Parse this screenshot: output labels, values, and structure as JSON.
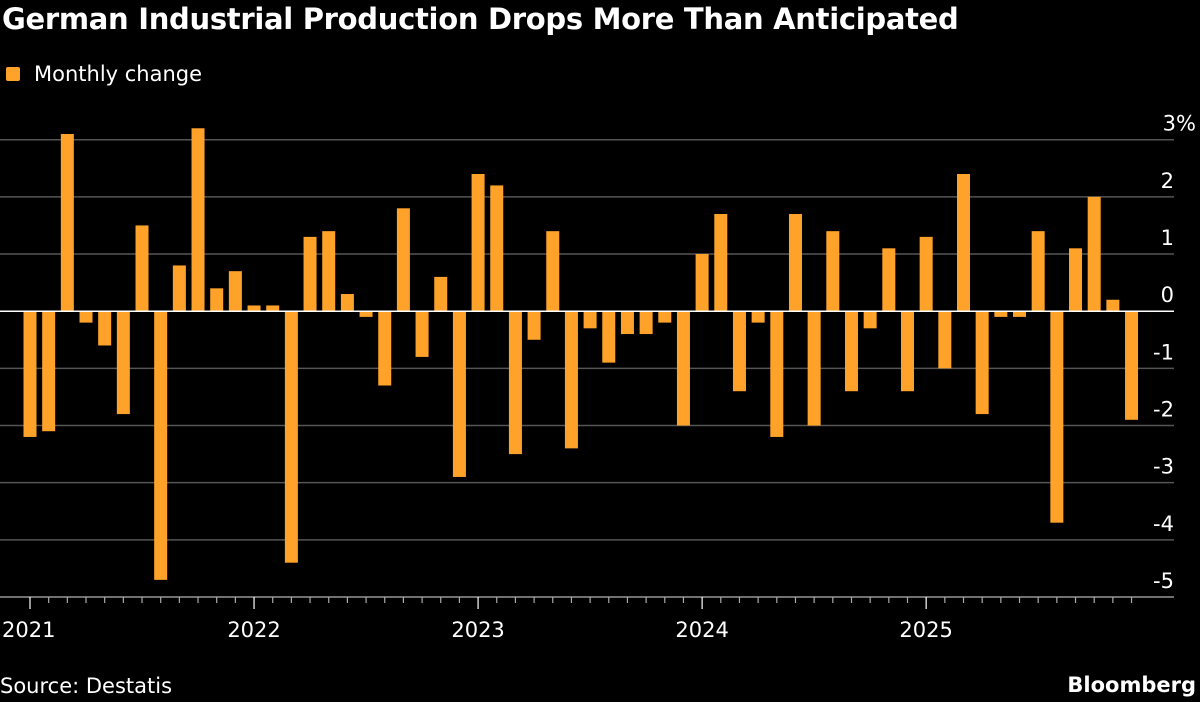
{
  "chart_data": {
    "type": "bar",
    "title": "German Industrial Production Drops More Than Anticipated",
    "legend": {
      "position": "top-left",
      "entries": [
        {
          "name": "Monthly change",
          "color": "#ffa22a"
        }
      ]
    },
    "ylabel": "",
    "xlabel": "",
    "ylim": [
      -5,
      3
    ],
    "yticks": [
      "3%",
      "2",
      "1",
      "0",
      "-1",
      "-2",
      "-3",
      "-4",
      "-5"
    ],
    "y_axis_position": "right",
    "grid": true,
    "x_start": "2021-01",
    "x_tick_labels": [
      "2021",
      "2022",
      "2023",
      "2024",
      "2025"
    ],
    "series": [
      {
        "name": "Monthly change",
        "color": "#ffa22a",
        "values": [
          -2.2,
          -2.1,
          3.1,
          -0.2,
          -0.6,
          -1.8,
          1.5,
          -4.7,
          0.8,
          3.2,
          0.4,
          0.7,
          0.1,
          0.1,
          -4.4,
          1.3,
          1.4,
          0.3,
          -0.1,
          -1.3,
          1.8,
          -0.8,
          0.6,
          -2.9,
          2.4,
          2.2,
          -2.5,
          -0.5,
          1.4,
          -2.4,
          -0.3,
          -0.9,
          -0.4,
          -0.4,
          -0.2,
          -2.0,
          1.0,
          1.7,
          -1.4,
          -0.2,
          -2.2,
          1.7,
          -2.0,
          1.4,
          -1.4,
          -0.3,
          1.1,
          -1.4,
          1.3,
          -1.0,
          2.4,
          -1.8,
          -0.1,
          -0.1,
          1.4,
          -3.7,
          1.1,
          2.0,
          0.2,
          -1.9
        ]
      }
    ]
  },
  "footer": {
    "source": "Source: Destatis",
    "brand": "Bloomberg"
  },
  "colors": {
    "background": "#000000",
    "bar": "#ffa22a",
    "grid": "#555555"
  }
}
